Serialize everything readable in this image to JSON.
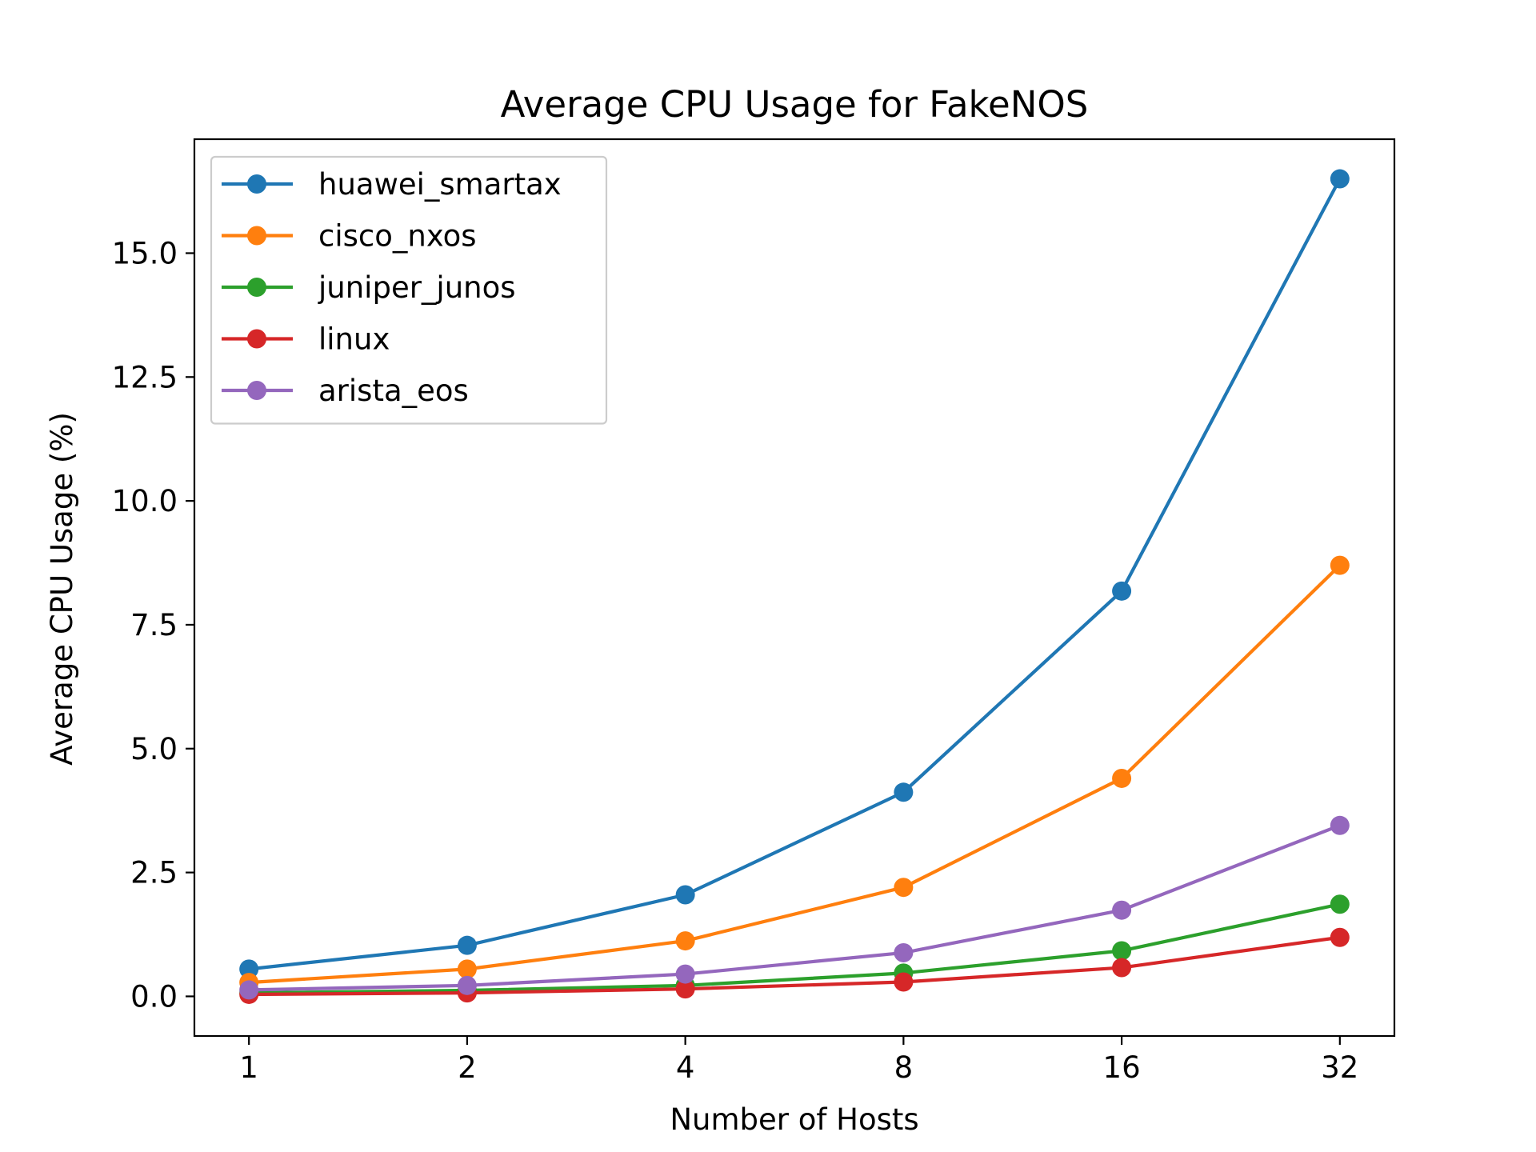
{
  "chart_data": {
    "type": "line",
    "title": "Average CPU Usage for FakeNOS",
    "xlabel": "Number of Hosts",
    "ylabel": "Average CPU Usage (%)",
    "x_scale": "log2",
    "categories": [
      "1",
      "2",
      "4",
      "8",
      "16",
      "32"
    ],
    "x": [
      1,
      2,
      4,
      8,
      16,
      32
    ],
    "ylim": [
      -0.8,
      17.3
    ],
    "yticks": [
      0.0,
      2.5,
      5.0,
      7.5,
      10.0,
      12.5,
      15.0
    ],
    "ytick_labels": [
      "0.0",
      "2.5",
      "5.0",
      "7.5",
      "10.0",
      "12.5",
      "15.0"
    ],
    "grid": false,
    "legend_position": "top-left",
    "series": [
      {
        "name": "huawei_smartax",
        "color": "#1f77b4",
        "values": [
          0.55,
          1.03,
          2.05,
          4.12,
          8.18,
          16.5
        ]
      },
      {
        "name": "cisco_nxos",
        "color": "#ff7f0e",
        "values": [
          0.28,
          0.55,
          1.12,
          2.2,
          4.4,
          8.7
        ]
      },
      {
        "name": "juniper_junos",
        "color": "#2ca02c",
        "values": [
          0.07,
          0.12,
          0.22,
          0.47,
          0.92,
          1.86
        ]
      },
      {
        "name": "linux",
        "color": "#d62728",
        "values": [
          0.04,
          0.07,
          0.15,
          0.29,
          0.58,
          1.19
        ]
      },
      {
        "name": "arista_eos",
        "color": "#9467bd",
        "values": [
          0.13,
          0.22,
          0.45,
          0.88,
          1.74,
          3.45
        ]
      }
    ]
  }
}
